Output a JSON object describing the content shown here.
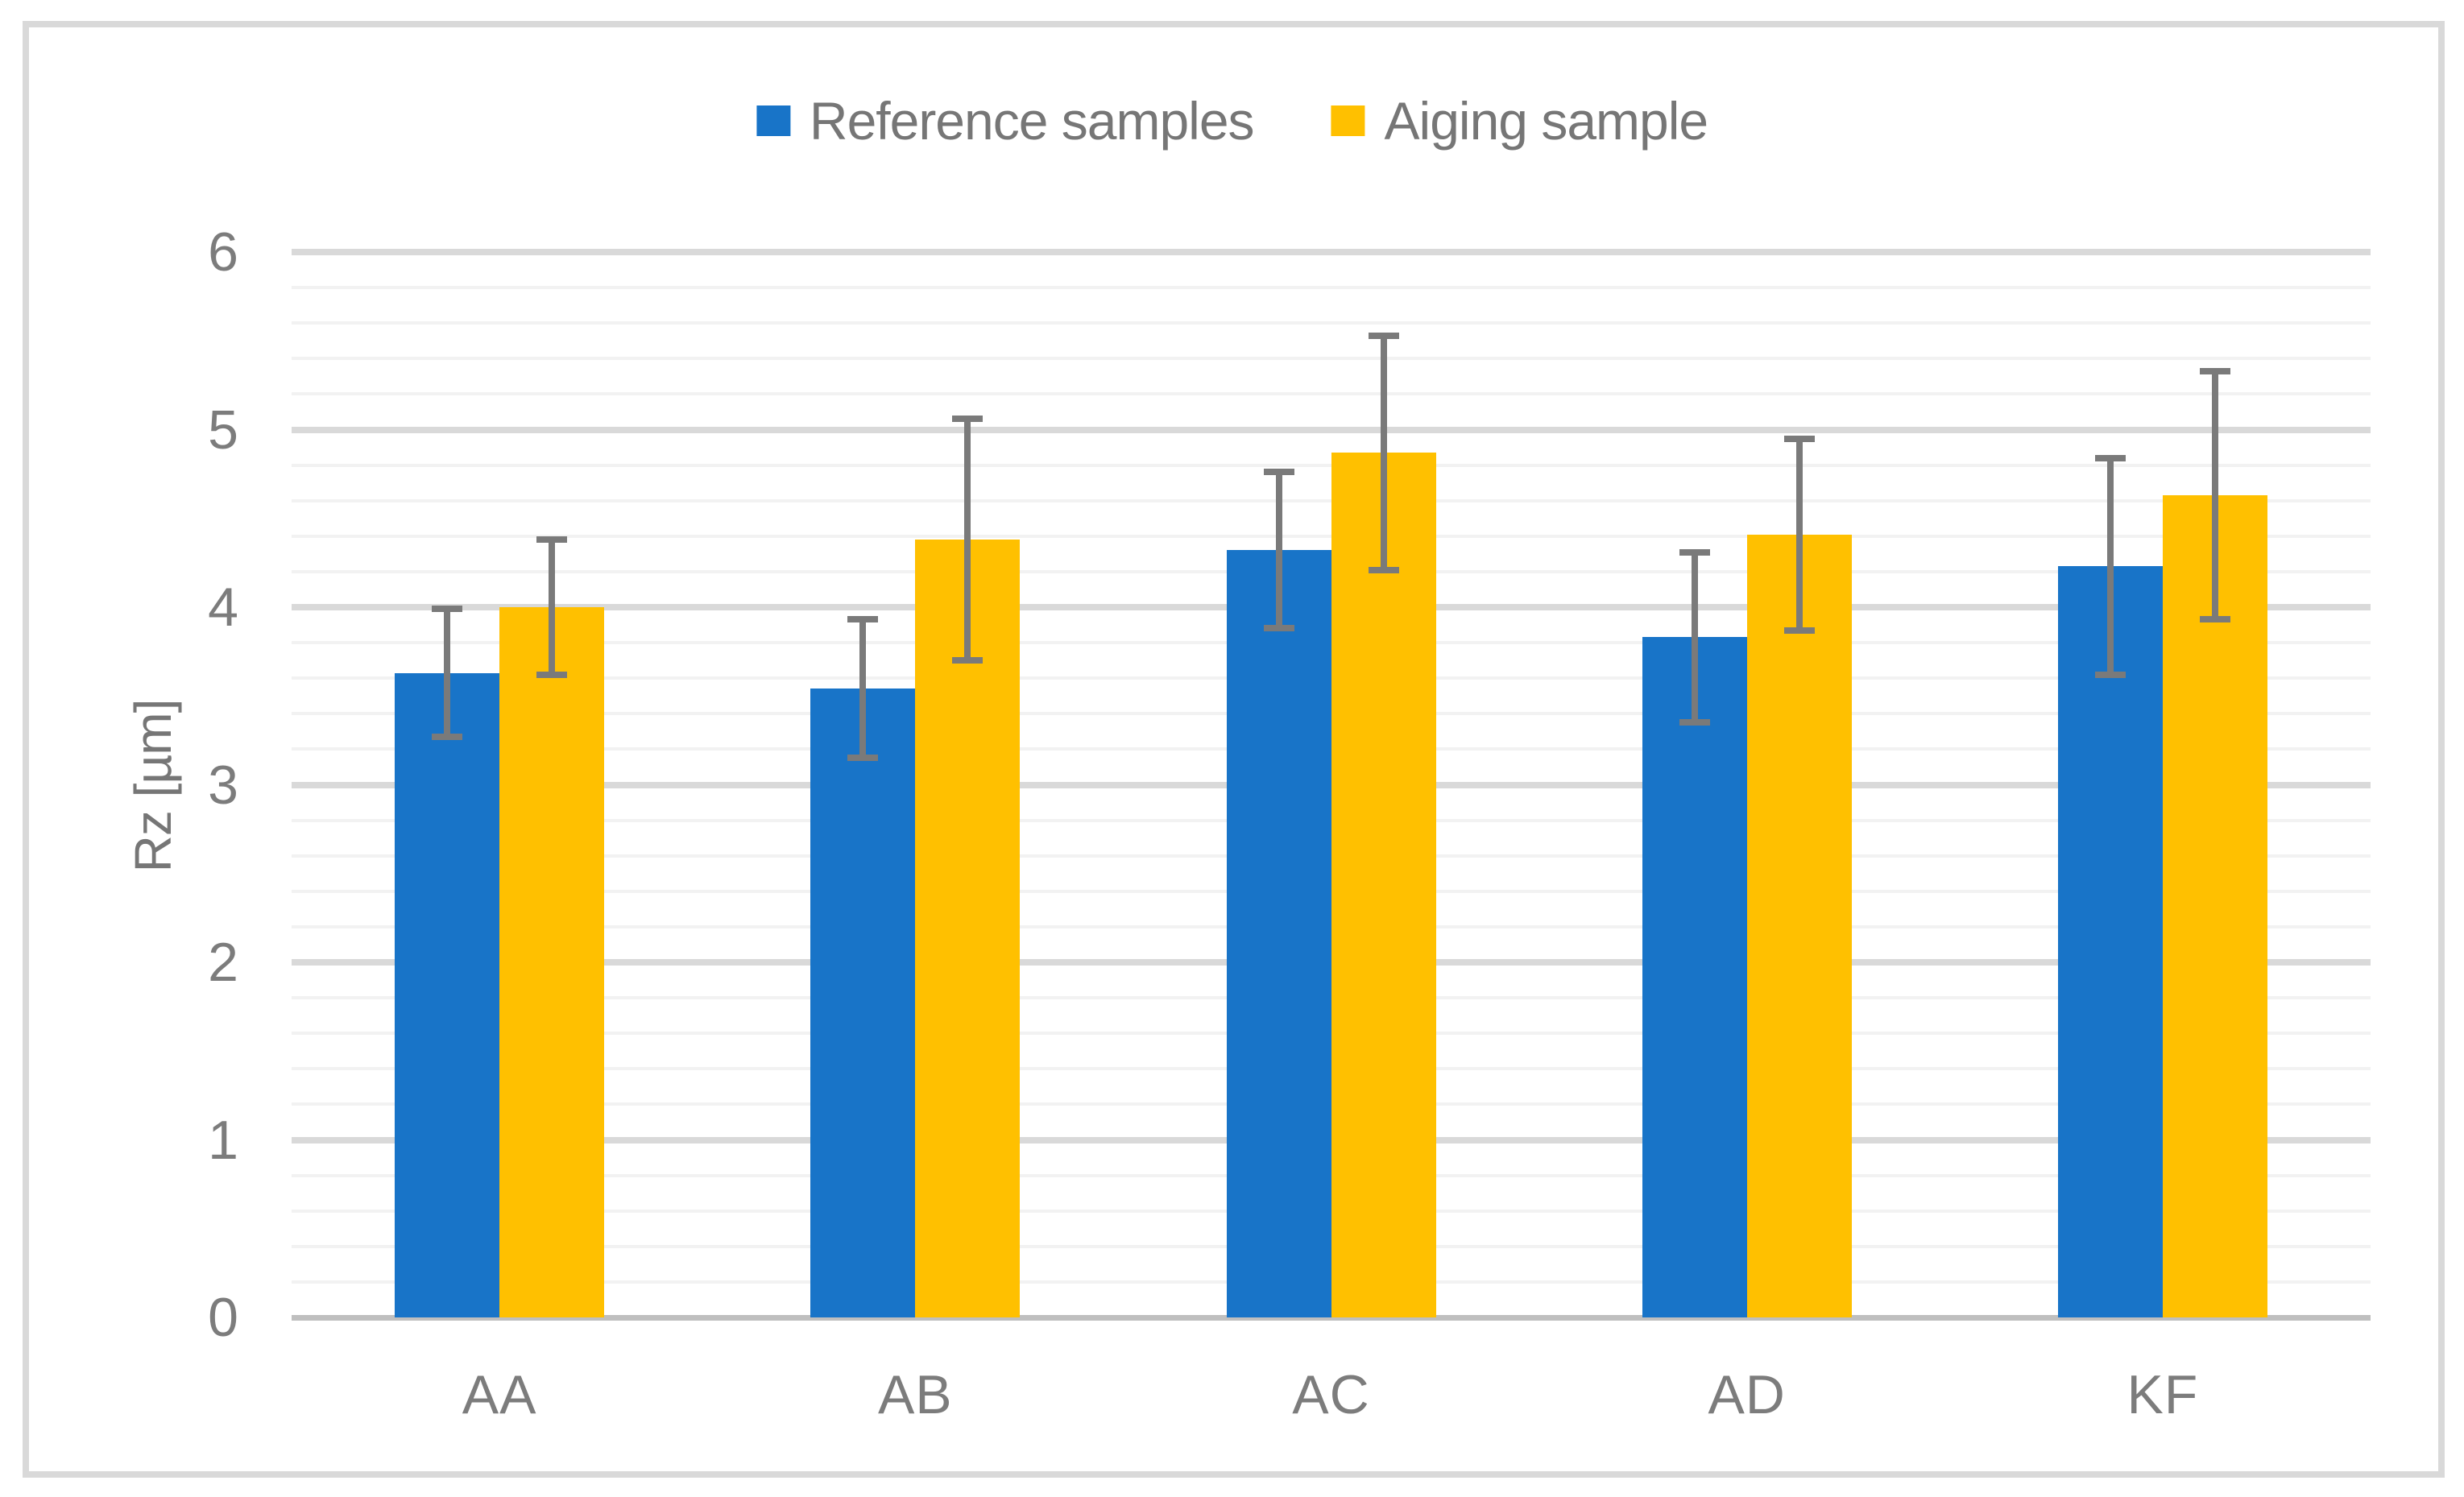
{
  "y_axis": {
    "title": "Rz [µm]",
    "ticks": [
      "0",
      "1",
      "2",
      "3",
      "4",
      "5",
      "6"
    ]
  },
  "chart_data": {
    "type": "bar",
    "title": "",
    "categories": [
      "AA",
      "AB",
      "AC",
      "AD",
      "KF"
    ],
    "series": [
      {
        "name": "Reference samples",
        "color": "#1874C8",
        "values": [
          3.63,
          3.54,
          4.32,
          3.83,
          4.23
        ],
        "error_bars": [
          0.36,
          0.39,
          0.44,
          0.48,
          0.61
        ]
      },
      {
        "name": "Aiging sample",
        "color": "#FFC000",
        "values": [
          4.0,
          4.38,
          4.87,
          4.41,
          4.63
        ],
        "error_bars": [
          0.38,
          0.68,
          0.66,
          0.54,
          0.7
        ]
      }
    ],
    "xlabel": "",
    "ylabel": "Rz [µm]",
    "ylim": [
      0,
      6
    ],
    "y_major_step": 1,
    "y_minor_step": 0.2,
    "grid": "horizontal-major-and-minor",
    "legend_position": "top-center",
    "error_bar_color": "#7A7A7A"
  },
  "colors": {
    "background": "#FFFFFF",
    "figure_border": "#D9D9D9",
    "gridline_major": "#D9D9D9",
    "gridline_minor": "#F2F2F2",
    "axis_line": "#BFBFBF",
    "text": "#7C7C7C"
  }
}
